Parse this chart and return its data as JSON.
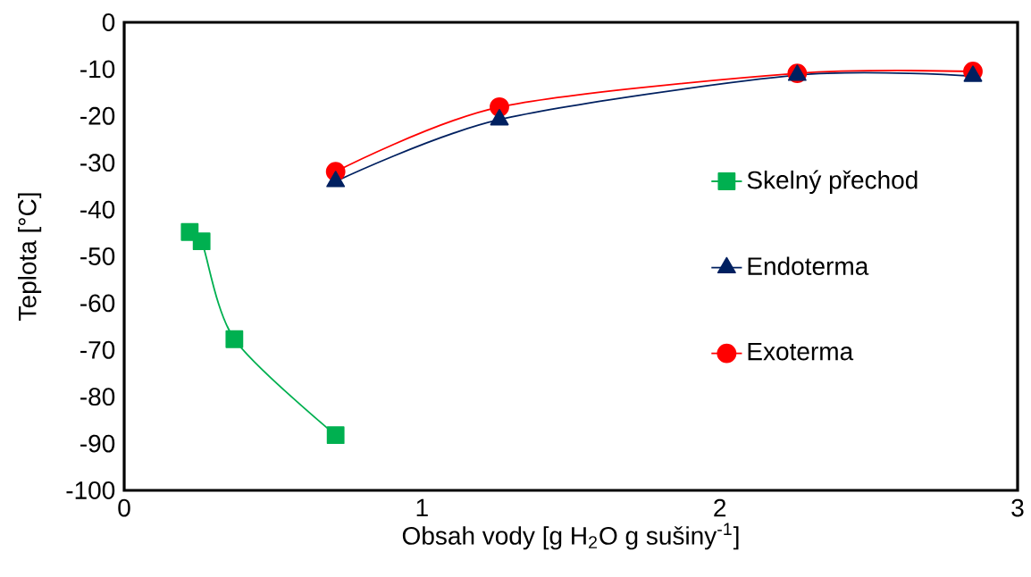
{
  "chart_data": {
    "type": "line",
    "xlabel": "Obsah vody [g H$_{2}$O g sušiny$^{-1}$]",
    "ylabel": "Teplota [°C]",
    "xlim": [
      0,
      3
    ],
    "ylim": [
      -100,
      0
    ],
    "xticks": [
      0,
      1,
      2,
      3
    ],
    "yticks": [
      -100,
      -90,
      -80,
      -70,
      -60,
      -50,
      -40,
      -30,
      -20,
      -10,
      0
    ],
    "legend": "right",
    "grid": false,
    "series": [
      {
        "name": "Skelný přechod",
        "color": "#00b050",
        "marker": "square",
        "x": [
          0.22,
          0.26,
          0.37,
          0.71
        ],
        "values": [
          -44.8,
          -46.8,
          -67.7,
          -88.2
        ]
      },
      {
        "name": "Endoterma",
        "color": "#002060",
        "marker": "triangle",
        "x": [
          0.71,
          1.26,
          2.26,
          2.85
        ],
        "values": [
          -34.0,
          -20.8,
          -11.3,
          -11.5
        ]
      },
      {
        "name": "Exoterma",
        "color": "#ff0000",
        "marker": "circle",
        "x": [
          0.71,
          1.26,
          2.26,
          2.85
        ],
        "values": [
          -31.9,
          -18.1,
          -10.9,
          -10.5
        ]
      }
    ]
  }
}
